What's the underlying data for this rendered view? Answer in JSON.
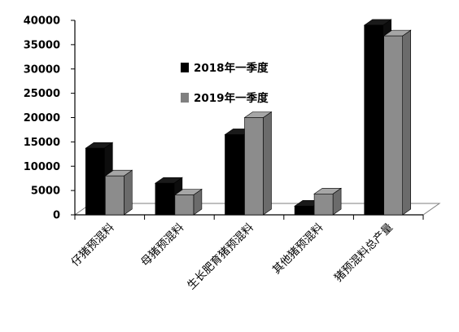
{
  "chart_data": {
    "type": "bar",
    "categories": [
      "仔猪预混料",
      "母猪预混料",
      "生长肥育猪预混料",
      "其他猪预混料",
      "猪预混料总产量"
    ],
    "series": [
      {
        "name": "2018年一季度",
        "values": [
          13700,
          6500,
          16500,
          1800,
          39000
        ],
        "color": "#000000"
      },
      {
        "name": "2019年一季度",
        "values": [
          8000,
          4100,
          20000,
          4300,
          36800
        ],
        "color": "#808080"
      }
    ],
    "yticks": [
      "0",
      "5000",
      "10000",
      "15000",
      "20000",
      "25000",
      "30000",
      "35000",
      "40000"
    ],
    "ylim": [
      0,
      40000
    ],
    "grid": false,
    "legend_position": "inside-center",
    "style": "3d-bar"
  }
}
